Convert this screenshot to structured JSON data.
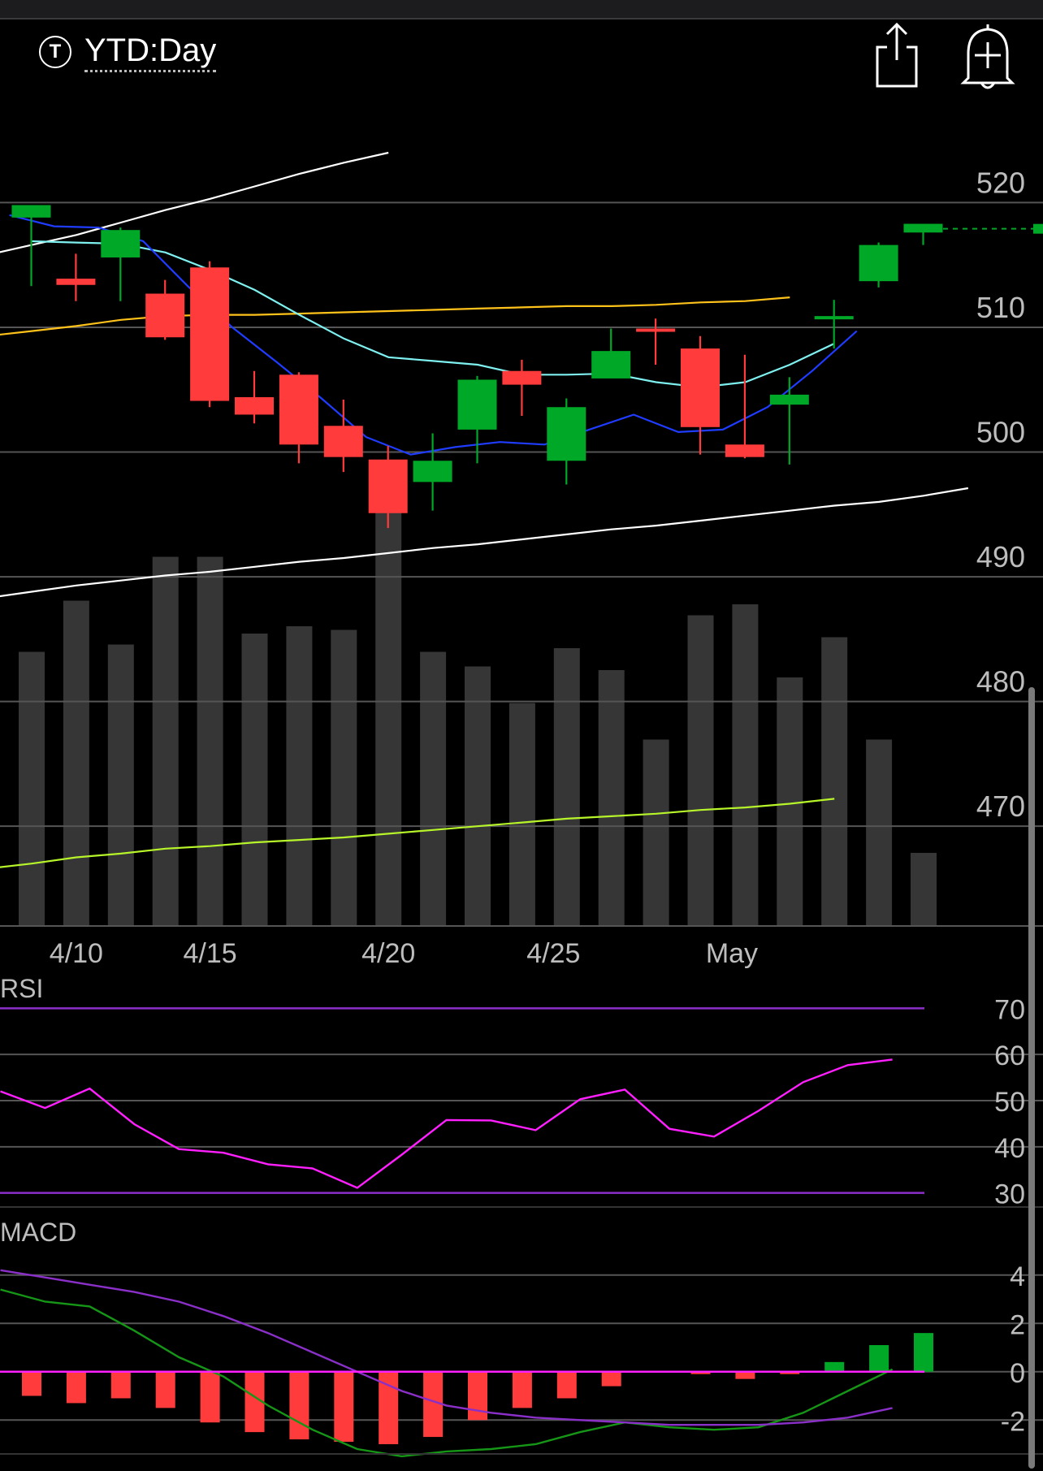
{
  "header": {
    "ticker_icon_label": "T",
    "period_label": "YTD:Day",
    "share_icon": "share-icon",
    "alert_icon": "add-alert-icon"
  },
  "colors": {
    "up": "#00a827",
    "down": "#ff3b3b",
    "ma_fast": "#1f3cff",
    "ma_mid": "#7ff0f0",
    "ma_slow": "#ffc21a",
    "channel": "#ffffff",
    "ma_long": "#b7f52a",
    "rsi": "#ff1fff",
    "rsi_bounds": "#8b2fc9",
    "macd": "#169616",
    "signal": "#8b2fc9",
    "zero": "#ff1fff",
    "volume": "#363636",
    "grid": "#555555"
  },
  "chart_data": [
    {
      "type": "candlestick",
      "ylim": [
        462,
        524
      ],
      "yticks": [
        520,
        510,
        500,
        490,
        480,
        470
      ],
      "xlabels": [
        {
          "label": "4/10",
          "index": 1
        },
        {
          "label": "4/15",
          "index": 4
        },
        {
          "label": "4/20",
          "index": 8
        },
        {
          "label": "4/25",
          "index": 11.7
        },
        {
          "label": "May",
          "index": 15.7
        }
      ],
      "candles": [
        {
          "o": 518.8,
          "h": 519.6,
          "l": 513.3,
          "c": 519.8
        },
        {
          "o": 513.9,
          "h": 515.9,
          "l": 512.1,
          "c": 513.4
        },
        {
          "o": 515.6,
          "h": 518.0,
          "l": 512.1,
          "c": 517.8
        },
        {
          "o": 512.7,
          "h": 513.8,
          "l": 509.0,
          "c": 509.2
        },
        {
          "o": 514.8,
          "h": 515.3,
          "l": 503.6,
          "c": 504.1
        },
        {
          "o": 504.4,
          "h": 506.5,
          "l": 502.3,
          "c": 503.0
        },
        {
          "o": 506.2,
          "h": 506.4,
          "l": 499.1,
          "c": 500.6
        },
        {
          "o": 502.1,
          "h": 504.2,
          "l": 498.4,
          "c": 499.6
        },
        {
          "o": 499.4,
          "h": 500.5,
          "l": 493.9,
          "c": 495.1
        },
        {
          "o": 497.6,
          "h": 501.5,
          "l": 495.3,
          "c": 499.3
        },
        {
          "o": 501.8,
          "h": 506.1,
          "l": 499.1,
          "c": 505.8
        },
        {
          "o": 506.5,
          "h": 507.4,
          "l": 502.9,
          "c": 505.4
        },
        {
          "o": 499.3,
          "h": 504.3,
          "l": 497.4,
          "c": 503.6
        },
        {
          "o": 505.9,
          "h": 509.9,
          "l": 506.1,
          "c": 508.1
        },
        {
          "o": 509.9,
          "h": 510.7,
          "l": 507.0,
          "c": 509.8
        },
        {
          "o": 508.3,
          "h": 509.3,
          "l": 499.8,
          "c": 502.0
        },
        {
          "o": 500.6,
          "h": 507.8,
          "l": 499.5,
          "c": 499.6
        },
        {
          "o": 503.8,
          "h": 506.0,
          "l": 499.0,
          "c": 504.6
        },
        {
          "o": 510.7,
          "h": 512.2,
          "l": 508.3,
          "c": 510.9
        },
        {
          "o": 513.7,
          "h": 516.8,
          "l": 513.2,
          "c": 516.6
        },
        {
          "o": 517.6,
          "h": 518.0,
          "l": 516.6,
          "c": 518.3
        }
      ],
      "last_price": 517.9,
      "ma_fast": [
        519.0,
        518.1,
        518.0,
        516.9,
        513.3,
        510.0,
        507.2,
        504.3,
        501.2,
        499.8,
        500.4,
        500.8,
        500.6,
        501.8,
        503.0,
        501.6,
        501.8,
        503.6,
        506.5,
        509.7
      ],
      "ma_mid": [
        516.9,
        516.8,
        516.7,
        516.0,
        514.6,
        513.0,
        511.0,
        509.1,
        507.6,
        507.3,
        507.0,
        506.2,
        506.2,
        506.3,
        505.6,
        505.2,
        505.6,
        507.0,
        508.7
      ],
      "ma_slow": [
        509.3,
        509.7,
        510.1,
        510.6,
        510.9,
        511.0,
        511.0,
        511.1,
        511.2,
        511.3,
        511.4,
        511.5,
        511.6,
        511.7,
        511.7,
        511.8,
        512.0,
        512.1,
        512.4
      ],
      "channel_upper": [
        515.8,
        516.6,
        517.4,
        518.4,
        519.4,
        520.3,
        521.3,
        522.3,
        523.2,
        524.0
      ],
      "channel_lower": [
        488.3,
        488.8,
        489.3,
        489.7,
        490.1,
        490.4,
        490.8,
        491.2,
        491.5,
        491.9,
        492.3,
        492.6,
        493.0,
        493.4,
        493.8,
        494.1,
        494.5,
        494.9,
        495.3,
        495.7,
        496.0,
        496.5,
        497.1
      ],
      "ma_long": [
        466.6,
        467.0,
        467.5,
        467.8,
        468.2,
        468.4,
        468.7,
        468.9,
        469.1,
        469.4,
        469.7,
        470.0,
        470.3,
        470.6,
        470.8,
        471.0,
        471.3,
        471.5,
        471.8,
        472.2
      ],
      "volume": [
        75,
        89,
        77,
        101,
        101,
        80,
        82,
        81,
        114,
        75,
        71,
        61,
        76,
        70,
        51,
        85,
        88,
        68,
        79,
        51,
        20
      ]
    },
    {
      "type": "line",
      "title": "RSI",
      "ylim": [
        28,
        72
      ],
      "yticks": [
        70,
        60,
        50,
        40,
        30
      ],
      "bounds": [
        70,
        30
      ],
      "values": [
        52,
        48.4,
        52.6,
        44.9,
        39.5,
        38.7,
        36.2,
        35.3,
        31.1,
        38.3,
        45.8,
        45.7,
        43.6,
        50.3,
        52.4,
        43.9,
        42.2,
        47.8,
        54.0,
        57.7,
        58.9
      ]
    },
    {
      "type": "bar+line",
      "title": "MACD",
      "ylim": [
        -3,
        5
      ],
      "yticks": [
        4,
        2,
        0,
        -2
      ],
      "macd": [
        3.4,
        2.9,
        2.7,
        1.7,
        0.6,
        -0.2,
        -1.4,
        -2.4,
        -3.2,
        -3.5,
        -3.3,
        -3.2,
        -3.0,
        -2.5,
        -2.1,
        -2.3,
        -2.4,
        -2.3,
        -1.7,
        -0.8,
        0.1
      ],
      "signal": [
        4.2,
        3.9,
        3.6,
        3.3,
        2.9,
        2.3,
        1.6,
        0.8,
        0.0,
        -0.8,
        -1.4,
        -1.7,
        -1.9,
        -2.0,
        -2.1,
        -2.2,
        -2.2,
        -2.2,
        -2.1,
        -1.9,
        -1.5
      ],
      "histogram": [
        -1.0,
        -1.3,
        -1.1,
        -1.5,
        -2.1,
        -2.5,
        -2.8,
        -2.9,
        -3.0,
        -2.7,
        -2.0,
        -1.5,
        -1.1,
        -0.6,
        0.0,
        -0.1,
        -0.3,
        -0.1,
        0.4,
        1.1,
        1.6
      ]
    }
  ]
}
